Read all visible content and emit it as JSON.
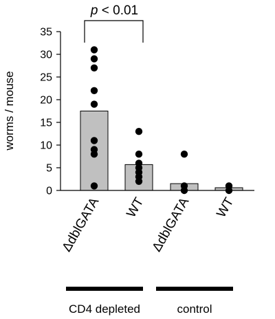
{
  "chart_data": {
    "type": "bar",
    "ylabel": "worms / mouse",
    "ylim": [
      0,
      35
    ],
    "yticks": [
      0,
      5,
      10,
      15,
      20,
      25,
      30,
      35
    ],
    "categories": [
      "ΔdblGATA",
      "WT",
      "ΔdblGATA",
      "WT"
    ],
    "groups": [
      {
        "label": "CD4 depleted",
        "categories": [
          0,
          1
        ]
      },
      {
        "label": "control",
        "categories": [
          2,
          3
        ]
      }
    ],
    "bar_color": "#c0c0c0",
    "point_color": "#000000",
    "bars": [
      17.5,
      5.7,
      1.5,
      0.6
    ],
    "points": [
      [
        31,
        29,
        27,
        22,
        19,
        11,
        9,
        8,
        1
      ],
      [
        13,
        8,
        6,
        5,
        4,
        3,
        2
      ],
      [
        8,
        1,
        0
      ],
      [
        1,
        0
      ]
    ],
    "annotations": [
      {
        "type": "significance",
        "label_prefix": "p",
        "label_suffix": " < 0.01",
        "between": [
          0,
          1
        ]
      }
    ]
  }
}
